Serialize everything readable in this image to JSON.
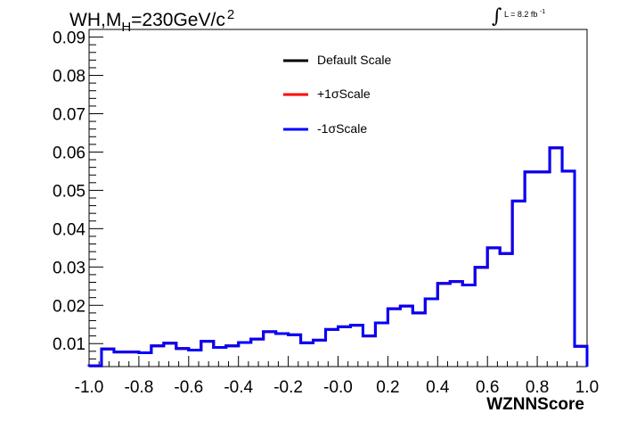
{
  "chart_data": {
    "type": "step",
    "title_main": "WH,M",
    "title_sub": "H",
    "title_rest": "=230GeV/c",
    "title_sup": "2",
    "lumi_symbol": "∫",
    "lumi_text": "L = 8.2 fb",
    "lumi_sup": "-1",
    "xlabel": "WZNNScore",
    "ylabel": "",
    "xlim": [
      -1.0,
      1.0
    ],
    "ylim": [
      0.004,
      0.092
    ],
    "xticks": [
      "-1.0",
      "-0.8",
      "-0.6",
      "-0.4",
      "-0.2",
      "-0.0",
      "0.2",
      "0.4",
      "0.6",
      "0.8",
      "1.0"
    ],
    "yticks": [
      "0.01",
      "0.02",
      "0.03",
      "0.04",
      "0.05",
      "0.06",
      "0.07",
      "0.08",
      "0.09"
    ],
    "grid": false,
    "legend_position": "top-center",
    "bin_edges": [
      -1.0,
      -0.95,
      -0.9,
      -0.85,
      -0.8,
      -0.75,
      -0.7,
      -0.65,
      -0.6,
      -0.55,
      -0.5,
      -0.45,
      -0.4,
      -0.35,
      -0.3,
      -0.25,
      -0.2,
      -0.15,
      -0.1,
      -0.05,
      0.0,
      0.05,
      0.1,
      0.15,
      0.2,
      0.25,
      0.3,
      0.35,
      0.4,
      0.45,
      0.5,
      0.55,
      0.6,
      0.65,
      0.7,
      0.75,
      0.8,
      0.85,
      0.9,
      0.95,
      1.0
    ],
    "series": [
      {
        "name": "Default Scale",
        "color": "#000000",
        "values": [
          0.0042,
          0.0086,
          0.0078,
          0.0078,
          0.0076,
          0.0094,
          0.0101,
          0.0087,
          0.0083,
          0.0106,
          0.009,
          0.0094,
          0.0103,
          0.0112,
          0.0131,
          0.0126,
          0.0123,
          0.0102,
          0.0109,
          0.0137,
          0.0144,
          0.0148,
          0.012,
          0.0154,
          0.0191,
          0.0198,
          0.018,
          0.0217,
          0.0257,
          0.0262,
          0.0253,
          0.0299,
          0.035,
          0.0335,
          0.0472,
          0.0548,
          0.0548,
          0.0611,
          0.055,
          0.0093
        ]
      },
      {
        "name": "+1σScale",
        "color": "#ff0000",
        "values": [
          0.0042,
          0.0086,
          0.0078,
          0.0078,
          0.0076,
          0.0094,
          0.0101,
          0.0087,
          0.0083,
          0.0106,
          0.009,
          0.0094,
          0.0103,
          0.0112,
          0.0131,
          0.0126,
          0.0123,
          0.0102,
          0.0109,
          0.0137,
          0.0144,
          0.0148,
          0.012,
          0.0154,
          0.0191,
          0.0198,
          0.018,
          0.0217,
          0.0257,
          0.0262,
          0.0253,
          0.0299,
          0.035,
          0.0335,
          0.0472,
          0.0548,
          0.0548,
          0.0611,
          0.055,
          0.0093
        ]
      },
      {
        "name": "-1σScale",
        "color": "#0000ff",
        "values": [
          0.0042,
          0.0086,
          0.0078,
          0.0078,
          0.0076,
          0.0094,
          0.0101,
          0.0087,
          0.0083,
          0.0106,
          0.009,
          0.0094,
          0.0103,
          0.0112,
          0.0131,
          0.0126,
          0.0123,
          0.0102,
          0.0109,
          0.0137,
          0.0144,
          0.0148,
          0.012,
          0.0154,
          0.0191,
          0.0198,
          0.018,
          0.0217,
          0.0257,
          0.0262,
          0.0253,
          0.0299,
          0.035,
          0.0335,
          0.0472,
          0.0548,
          0.0548,
          0.0611,
          0.055,
          0.0093
        ]
      }
    ]
  }
}
